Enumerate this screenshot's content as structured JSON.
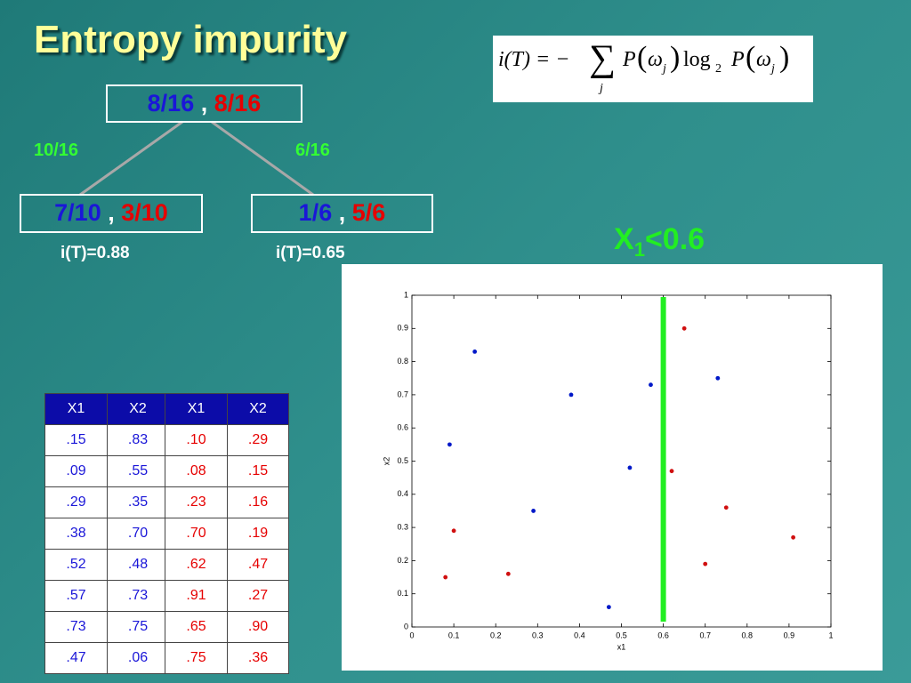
{
  "title": "Entropy impurity",
  "formula": {
    "lhs": "i(T) = −",
    "sum": "∑",
    "sum_index": "j",
    "p": "P",
    "omega": "ω",
    "sub": "j",
    "log": "log",
    "base": "2"
  },
  "tree": {
    "root": {
      "blue": "8/16",
      "separator": ",",
      "red": "8/16"
    },
    "left_edge": "10/16",
    "right_edge": "6/16",
    "left": {
      "blue": "7/10",
      "separator": ",",
      "red": "3/10",
      "impurity": "i(T)=0.88"
    },
    "right": {
      "blue": "1/6",
      "separator": ",",
      "red": "5/6",
      "impurity": "i(T)=0.65"
    }
  },
  "table": {
    "headers": [
      "X1",
      "X2",
      "X1",
      "X2"
    ],
    "rows": [
      [
        ".15",
        ".83",
        ".10",
        ".29"
      ],
      [
        ".09",
        ".55",
        ".08",
        ".15"
      ],
      [
        ".29",
        ".35",
        ".23",
        ".16"
      ],
      [
        ".38",
        ".70",
        ".70",
        ".19"
      ],
      [
        ".52",
        ".48",
        ".62",
        ".47"
      ],
      [
        ".57",
        ".73",
        ".91",
        ".27"
      ],
      [
        ".73",
        ".75",
        ".65",
        ".90"
      ],
      [
        ".47",
        ".06",
        ".75",
        ".36"
      ]
    ]
  },
  "chart_data": {
    "type": "scatter",
    "x_label": "x1",
    "y_label": "x2",
    "xlim": [
      0,
      1
    ],
    "ylim": [
      0,
      1
    ],
    "xticks": [
      0,
      0.1,
      0.2,
      0.3,
      0.4,
      0.5,
      0.6,
      0.7,
      0.8,
      0.9,
      1
    ],
    "yticks": [
      0,
      0.1,
      0.2,
      0.3,
      0.4,
      0.5,
      0.6,
      0.7,
      0.8,
      0.9,
      1
    ],
    "series": [
      {
        "color": "#0018c8",
        "x": [
          0.15,
          0.09,
          0.29,
          0.38,
          0.52,
          0.57,
          0.73,
          0.47
        ],
        "values": [
          0.83,
          0.55,
          0.35,
          0.7,
          0.48,
          0.73,
          0.75,
          0.06
        ]
      },
      {
        "color": "#d01010",
        "x": [
          0.1,
          0.08,
          0.23,
          0.7,
          0.62,
          0.91,
          0.65,
          0.75
        ],
        "values": [
          0.29,
          0.15,
          0.16,
          0.19,
          0.47,
          0.27,
          0.9,
          0.36
        ]
      }
    ],
    "split_x": 0.6,
    "split_color": "#22ee22",
    "split_label": {
      "base": "X",
      "sub": "1",
      "text": "<0.6"
    }
  }
}
